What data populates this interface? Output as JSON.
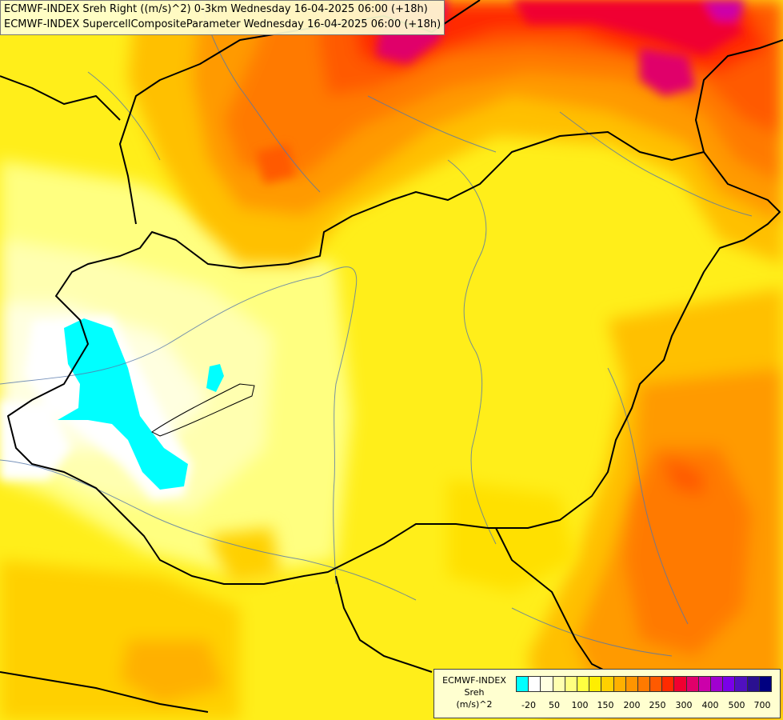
{
  "header": {
    "line1": "ECMWF-INDEX Sreh Right ((m/s)^2) 0-3km Wednesday 16-04-2025 06:00 (+18h)",
    "line2": "ECMWF-INDEX SupercellCompositeParameter Wednesday 16-04-2025 06:00 (+18h)"
  },
  "legend": {
    "title1": "ECMWF-INDEX",
    "title2": "Sreh",
    "title3": "(m/s)^2",
    "colors": [
      "#00ffff",
      "#ffffff",
      "#ffffe0",
      "#ffffb0",
      "#ffff80",
      "#ffff40",
      "#ffee00",
      "#ffd000",
      "#ffb000",
      "#ff9500",
      "#ff7a00",
      "#ff5a00",
      "#ff2a00",
      "#f00030",
      "#e0006a",
      "#cc00aa",
      "#a000d0",
      "#7a00e8",
      "#5010c0",
      "#2a1090",
      "#000080"
    ],
    "ticks": [
      "-20",
      "50",
      "100",
      "150",
      "200",
      "250",
      "300",
      "400",
      "500",
      "700"
    ]
  }
}
